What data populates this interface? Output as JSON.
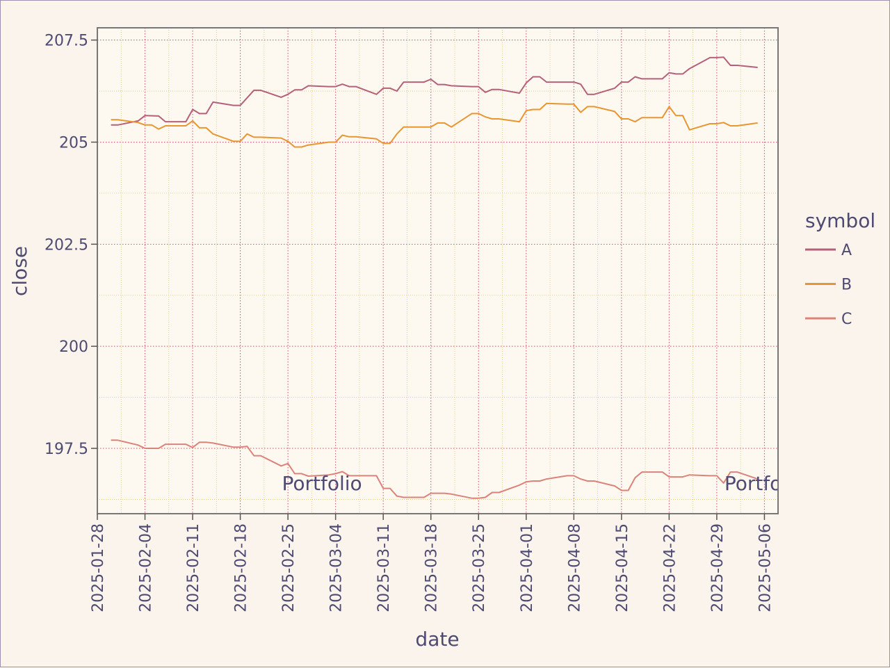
{
  "chart_data": {
    "type": "line",
    "title": "",
    "xlabel": "date",
    "ylabel": "close",
    "x_type": "date",
    "xlim": [
      "2025-01-28",
      "2025-05-08"
    ],
    "ylim": [
      195.9,
      207.8
    ],
    "x_ticks": [
      "2025-01-28",
      "2025-02-04",
      "2025-02-11",
      "2025-02-18",
      "2025-02-25",
      "2025-03-04",
      "2025-03-11",
      "2025-03-18",
      "2025-03-25",
      "2025-04-01",
      "2025-04-08",
      "2025-04-15",
      "2025-04-22",
      "2025-04-29",
      "2025-05-06"
    ],
    "y_ticks": [
      197.5,
      200,
      202.5,
      205,
      207.5
    ],
    "y_tick_labels": [
      "197.5",
      "200",
      "202.5",
      "205",
      "207.5"
    ],
    "grid": true,
    "legend": {
      "title": "symbol",
      "placement": "right"
    },
    "annotations": [
      {
        "text": "Portfolio",
        "x": "2025-03-02",
        "y": 196.65
      },
      {
        "text": "Portfolio",
        "x": "2025-05-06",
        "y": 196.65
      }
    ],
    "series": [
      {
        "name": "A",
        "color": "#b5607a",
        "points": [
          [
            "2025-01-30",
            205.42
          ],
          [
            "2025-01-31",
            205.42
          ],
          [
            "2025-02-03",
            205.52
          ],
          [
            "2025-02-04",
            205.65
          ],
          [
            "2025-02-06",
            205.64
          ],
          [
            "2025-02-07",
            205.5
          ],
          [
            "2025-02-10",
            205.5
          ],
          [
            "2025-02-11",
            205.8
          ],
          [
            "2025-02-12",
            205.7
          ],
          [
            "2025-02-13",
            205.7
          ],
          [
            "2025-02-14",
            205.98
          ],
          [
            "2025-02-17",
            205.9
          ],
          [
            "2025-02-18",
            205.9
          ],
          [
            "2025-02-20",
            206.27
          ],
          [
            "2025-02-21",
            206.27
          ],
          [
            "2025-02-24",
            206.1
          ],
          [
            "2025-02-25",
            206.17
          ],
          [
            "2025-02-26",
            206.28
          ],
          [
            "2025-02-27",
            206.28
          ],
          [
            "2025-02-28",
            206.38
          ],
          [
            "2025-03-03",
            206.36
          ],
          [
            "2025-03-04",
            206.36
          ],
          [
            "2025-03-05",
            206.42
          ],
          [
            "2025-03-06",
            206.36
          ],
          [
            "2025-03-07",
            206.36
          ],
          [
            "2025-03-10",
            206.17
          ],
          [
            "2025-03-11",
            206.32
          ],
          [
            "2025-03-12",
            206.32
          ],
          [
            "2025-03-13",
            206.25
          ],
          [
            "2025-03-14",
            206.47
          ],
          [
            "2025-03-17",
            206.47
          ],
          [
            "2025-03-18",
            206.54
          ],
          [
            "2025-03-19",
            206.41
          ],
          [
            "2025-03-20",
            206.41
          ],
          [
            "2025-03-21",
            206.38
          ],
          [
            "2025-03-24",
            206.36
          ],
          [
            "2025-03-25",
            206.36
          ],
          [
            "2025-03-26",
            206.22
          ],
          [
            "2025-03-27",
            206.29
          ],
          [
            "2025-03-28",
            206.29
          ],
          [
            "2025-03-31",
            206.2
          ],
          [
            "2025-04-01",
            206.45
          ],
          [
            "2025-04-02",
            206.6
          ],
          [
            "2025-04-03",
            206.6
          ],
          [
            "2025-04-04",
            206.47
          ],
          [
            "2025-04-07",
            206.47
          ],
          [
            "2025-04-08",
            206.47
          ],
          [
            "2025-04-09",
            206.42
          ],
          [
            "2025-04-10",
            206.17
          ],
          [
            "2025-04-11",
            206.17
          ],
          [
            "2025-04-14",
            206.32
          ],
          [
            "2025-04-15",
            206.47
          ],
          [
            "2025-04-16",
            206.47
          ],
          [
            "2025-04-17",
            206.6
          ],
          [
            "2025-04-18",
            206.55
          ],
          [
            "2025-04-21",
            206.55
          ],
          [
            "2025-04-22",
            206.7
          ],
          [
            "2025-04-23",
            206.67
          ],
          [
            "2025-04-24",
            206.67
          ],
          [
            "2025-04-25",
            206.8
          ],
          [
            "2025-04-28",
            207.07
          ],
          [
            "2025-04-29",
            207.07
          ],
          [
            "2025-04-30",
            207.08
          ],
          [
            "2025-05-01",
            206.88
          ],
          [
            "2025-05-02",
            206.88
          ],
          [
            "2025-05-05",
            206.83
          ]
        ]
      },
      {
        "name": "B",
        "color": "#e8962f",
        "points": [
          [
            "2025-01-30",
            205.55
          ],
          [
            "2025-01-31",
            205.55
          ],
          [
            "2025-02-03",
            205.48
          ],
          [
            "2025-02-04",
            205.42
          ],
          [
            "2025-02-05",
            205.42
          ],
          [
            "2025-02-06",
            205.32
          ],
          [
            "2025-02-07",
            205.4
          ],
          [
            "2025-02-10",
            205.4
          ],
          [
            "2025-02-11",
            205.52
          ],
          [
            "2025-02-12",
            205.35
          ],
          [
            "2025-02-13",
            205.35
          ],
          [
            "2025-02-14",
            205.2
          ],
          [
            "2025-02-17",
            205.02
          ],
          [
            "2025-02-18",
            205.02
          ],
          [
            "2025-02-19",
            205.2
          ],
          [
            "2025-02-20",
            205.12
          ],
          [
            "2025-02-21",
            205.12
          ],
          [
            "2025-02-24",
            205.1
          ],
          [
            "2025-02-25",
            205.02
          ],
          [
            "2025-02-26",
            204.88
          ],
          [
            "2025-02-27",
            204.88
          ],
          [
            "2025-02-28",
            204.93
          ],
          [
            "2025-03-03",
            205.0
          ],
          [
            "2025-03-04",
            205.0
          ],
          [
            "2025-03-05",
            205.17
          ],
          [
            "2025-03-06",
            205.13
          ],
          [
            "2025-03-07",
            205.13
          ],
          [
            "2025-03-10",
            205.08
          ],
          [
            "2025-03-11",
            204.97
          ],
          [
            "2025-03-12",
            204.97
          ],
          [
            "2025-03-13",
            205.2
          ],
          [
            "2025-03-14",
            205.37
          ],
          [
            "2025-03-17",
            205.37
          ],
          [
            "2025-03-18",
            205.37
          ],
          [
            "2025-03-19",
            205.47
          ],
          [
            "2025-03-20",
            205.47
          ],
          [
            "2025-03-21",
            205.37
          ],
          [
            "2025-03-24",
            205.7
          ],
          [
            "2025-03-25",
            205.7
          ],
          [
            "2025-03-26",
            205.62
          ],
          [
            "2025-03-27",
            205.57
          ],
          [
            "2025-03-28",
            205.57
          ],
          [
            "2025-03-31",
            205.5
          ],
          [
            "2025-04-01",
            205.77
          ],
          [
            "2025-04-02",
            205.8
          ],
          [
            "2025-04-03",
            205.8
          ],
          [
            "2025-04-04",
            205.95
          ],
          [
            "2025-04-07",
            205.93
          ],
          [
            "2025-04-08",
            205.93
          ],
          [
            "2025-04-09",
            205.73
          ],
          [
            "2025-04-10",
            205.87
          ],
          [
            "2025-04-11",
            205.87
          ],
          [
            "2025-04-14",
            205.75
          ],
          [
            "2025-04-15",
            205.57
          ],
          [
            "2025-04-16",
            205.57
          ],
          [
            "2025-04-17",
            205.5
          ],
          [
            "2025-04-18",
            205.6
          ],
          [
            "2025-04-21",
            205.6
          ],
          [
            "2025-04-22",
            205.87
          ],
          [
            "2025-04-23",
            205.65
          ],
          [
            "2025-04-24",
            205.65
          ],
          [
            "2025-04-25",
            205.3
          ],
          [
            "2025-04-28",
            205.45
          ],
          [
            "2025-04-29",
            205.45
          ],
          [
            "2025-04-30",
            205.48
          ],
          [
            "2025-05-01",
            205.4
          ],
          [
            "2025-05-02",
            205.4
          ],
          [
            "2025-05-05",
            205.47
          ]
        ]
      },
      {
        "name": "C",
        "color": "#dc8379",
        "points": [
          [
            "2025-01-30",
            197.7
          ],
          [
            "2025-01-31",
            197.7
          ],
          [
            "2025-02-03",
            197.58
          ],
          [
            "2025-02-04",
            197.5
          ],
          [
            "2025-02-05",
            197.5
          ],
          [
            "2025-02-06",
            197.5
          ],
          [
            "2025-02-07",
            197.6
          ],
          [
            "2025-02-10",
            197.6
          ],
          [
            "2025-02-11",
            197.52
          ],
          [
            "2025-02-12",
            197.65
          ],
          [
            "2025-02-13",
            197.65
          ],
          [
            "2025-02-14",
            197.63
          ],
          [
            "2025-02-17",
            197.53
          ],
          [
            "2025-02-18",
            197.53
          ],
          [
            "2025-02-19",
            197.55
          ],
          [
            "2025-02-20",
            197.32
          ],
          [
            "2025-02-21",
            197.32
          ],
          [
            "2025-02-24",
            197.07
          ],
          [
            "2025-02-25",
            197.13
          ],
          [
            "2025-02-26",
            196.88
          ],
          [
            "2025-02-27",
            196.88
          ],
          [
            "2025-02-28",
            196.82
          ],
          [
            "2025-03-03",
            196.85
          ],
          [
            "2025-03-04",
            196.88
          ],
          [
            "2025-03-05",
            196.93
          ],
          [
            "2025-03-06",
            196.83
          ],
          [
            "2025-03-07",
            196.83
          ],
          [
            "2025-03-10",
            196.83
          ],
          [
            "2025-03-11",
            196.52
          ],
          [
            "2025-03-12",
            196.52
          ],
          [
            "2025-03-13",
            196.33
          ],
          [
            "2025-03-14",
            196.3
          ],
          [
            "2025-03-17",
            196.3
          ],
          [
            "2025-03-18",
            196.4
          ],
          [
            "2025-03-19",
            196.4
          ],
          [
            "2025-03-20",
            196.4
          ],
          [
            "2025-03-21",
            196.38
          ],
          [
            "2025-03-24",
            196.28
          ],
          [
            "2025-03-25",
            196.28
          ],
          [
            "2025-03-26",
            196.3
          ],
          [
            "2025-03-27",
            196.42
          ],
          [
            "2025-03-28",
            196.42
          ],
          [
            "2025-03-31",
            196.6
          ],
          [
            "2025-04-01",
            196.68
          ],
          [
            "2025-04-02",
            196.7
          ],
          [
            "2025-04-03",
            196.7
          ],
          [
            "2025-04-04",
            196.75
          ],
          [
            "2025-04-07",
            196.83
          ],
          [
            "2025-04-08",
            196.83
          ],
          [
            "2025-04-09",
            196.75
          ],
          [
            "2025-04-10",
            196.7
          ],
          [
            "2025-04-11",
            196.7
          ],
          [
            "2025-04-14",
            196.58
          ],
          [
            "2025-04-15",
            196.47
          ],
          [
            "2025-04-16",
            196.47
          ],
          [
            "2025-04-17",
            196.78
          ],
          [
            "2025-04-18",
            196.92
          ],
          [
            "2025-04-21",
            196.92
          ],
          [
            "2025-04-22",
            196.8
          ],
          [
            "2025-04-23",
            196.8
          ],
          [
            "2025-04-24",
            196.8
          ],
          [
            "2025-04-25",
            196.85
          ],
          [
            "2025-04-28",
            196.83
          ],
          [
            "2025-04-29",
            196.83
          ],
          [
            "2025-04-30",
            196.65
          ],
          [
            "2025-05-01",
            196.92
          ],
          [
            "2025-05-02",
            196.92
          ],
          [
            "2025-05-05",
            196.75
          ]
        ]
      }
    ]
  }
}
